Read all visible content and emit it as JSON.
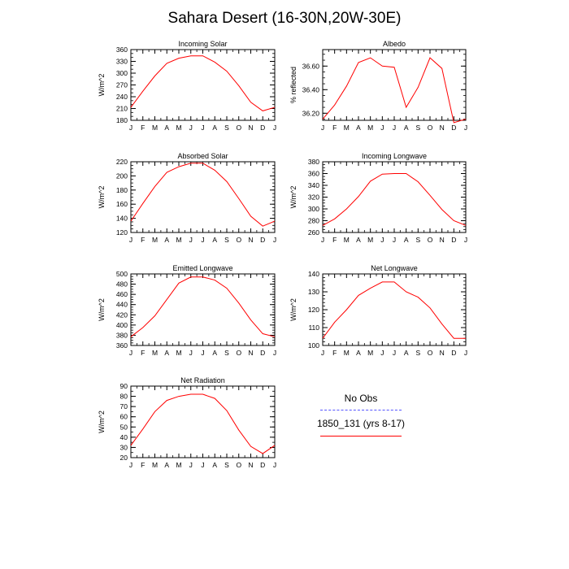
{
  "figure": {
    "title": "Sahara Desert (16-30N,20W-30E)"
  },
  "months": [
    "J",
    "F",
    "M",
    "A",
    "M",
    "J",
    "J",
    "A",
    "S",
    "O",
    "N",
    "D",
    "J"
  ],
  "legend": {
    "items": [
      {
        "label": "No Obs",
        "color": "#5555ff",
        "style": "dashed"
      },
      {
        "label": "1850_131 (yrs 8-17)",
        "color": "#ff0000",
        "style": "solid"
      }
    ]
  },
  "chart_data": [
    {
      "type": "line",
      "title": "Incoming Solar",
      "ylabel": "W/m^2",
      "ylim": [
        180,
        360
      ],
      "yticks": [
        180,
        210,
        240,
        270,
        300,
        330,
        360
      ],
      "ytick_labels": [
        "180",
        "210",
        "240",
        "270",
        "300",
        "330",
        "360"
      ],
      "ytick_minor_step": 10,
      "categories": [
        "J",
        "F",
        "M",
        "A",
        "M",
        "J",
        "J",
        "A",
        "S",
        "O",
        "N",
        "D",
        "J"
      ],
      "series": [
        {
          "color": "#ff0000",
          "values": [
            213,
            254,
            293,
            325,
            338,
            344,
            344,
            328,
            305,
            268,
            226,
            204,
            213
          ]
        }
      ]
    },
    {
      "type": "line",
      "title": "Albedo",
      "ylabel": "% reflected",
      "ylim": [
        36.14,
        36.74
      ],
      "yticks": [
        36.2,
        36.4,
        36.6
      ],
      "ytick_labels": [
        "36.20",
        "36.40",
        "36.60"
      ],
      "ytick_minor_step": 0.05,
      "categories": [
        "J",
        "F",
        "M",
        "A",
        "M",
        "J",
        "J",
        "A",
        "S",
        "O",
        "N",
        "D",
        "J"
      ],
      "series": [
        {
          "color": "#ff0000",
          "values": [
            36.15,
            36.27,
            36.43,
            36.63,
            36.67,
            36.6,
            36.59,
            36.25,
            36.42,
            36.67,
            36.58,
            36.12,
            36.15
          ]
        }
      ]
    },
    {
      "type": "line",
      "title": "Absorbed Solar",
      "ylabel": "W/m^2",
      "ylim": [
        120,
        220
      ],
      "yticks": [
        120,
        140,
        160,
        180,
        200,
        220
      ],
      "ytick_labels": [
        "120",
        "140",
        "160",
        "180",
        "200",
        "220"
      ],
      "ytick_minor_step": 5,
      "categories": [
        "J",
        "F",
        "M",
        "A",
        "M",
        "J",
        "J",
        "A",
        "S",
        "O",
        "N",
        "D",
        "J"
      ],
      "series": [
        {
          "color": "#ff0000",
          "values": [
            136,
            161,
            185,
            205,
            213,
            218,
            218,
            208,
            192,
            168,
            143,
            129,
            136
          ]
        }
      ]
    },
    {
      "type": "line",
      "title": "Incoming Longwave",
      "ylabel": "W/m^2",
      "ylim": [
        260,
        380
      ],
      "yticks": [
        260,
        280,
        300,
        320,
        340,
        360,
        380
      ],
      "ytick_labels": [
        "260",
        "280",
        "300",
        "320",
        "340",
        "360",
        "380"
      ],
      "ytick_minor_step": 5,
      "categories": [
        "J",
        "F",
        "M",
        "A",
        "M",
        "J",
        "J",
        "A",
        "S",
        "O",
        "N",
        "D",
        "J"
      ],
      "series": [
        {
          "color": "#ff0000",
          "values": [
            272,
            283,
            300,
            321,
            347,
            359,
            360,
            360,
            346,
            323,
            299,
            280,
            272
          ]
        }
      ]
    },
    {
      "type": "line",
      "title": "Emitted Longwave",
      "ylabel": "W/m^2",
      "ylim": [
        360,
        500
      ],
      "yticks": [
        360,
        380,
        400,
        420,
        440,
        460,
        480,
        500
      ],
      "ytick_labels": [
        "360",
        "380",
        "400",
        "420",
        "440",
        "460",
        "480",
        "500"
      ],
      "ytick_minor_step": 5,
      "categories": [
        "J",
        "F",
        "M",
        "A",
        "M",
        "J",
        "J",
        "A",
        "S",
        "O",
        "N",
        "D",
        "J"
      ],
      "series": [
        {
          "color": "#ff0000",
          "values": [
            377,
            395,
            418,
            450,
            482,
            494,
            494,
            488,
            472,
            443,
            410,
            383,
            377
          ]
        }
      ]
    },
    {
      "type": "line",
      "title": "Net Longwave",
      "ylabel": "W/m^2",
      "ylim": [
        100,
        140
      ],
      "yticks": [
        100,
        110,
        120,
        130,
        140
      ],
      "ytick_labels": [
        "100",
        "110",
        "120",
        "130",
        "140"
      ],
      "ytick_minor_step": 2,
      "categories": [
        "J",
        "F",
        "M",
        "A",
        "M",
        "J",
        "J",
        "A",
        "S",
        "O",
        "N",
        "D",
        "J"
      ],
      "series": [
        {
          "color": "#ff0000",
          "values": [
            104,
            113,
            120,
            128,
            132,
            135.5,
            135.5,
            130,
            127,
            121,
            112,
            104,
            104
          ]
        }
      ]
    },
    {
      "type": "line",
      "title": "Net Radiation",
      "ylabel": "W/m^2",
      "ylim": [
        20,
        90
      ],
      "yticks": [
        20,
        30,
        40,
        50,
        60,
        70,
        80,
        90
      ],
      "ytick_labels": [
        "20",
        "30",
        "40",
        "50",
        "60",
        "70",
        "80",
        "90"
      ],
      "ytick_minor_step": 5,
      "categories": [
        "J",
        "F",
        "M",
        "A",
        "M",
        "J",
        "J",
        "A",
        "S",
        "O",
        "N",
        "D",
        "J"
      ],
      "series": [
        {
          "color": "#ff0000",
          "values": [
            32,
            48,
            65,
            76,
            80,
            82,
            82,
            78,
            66,
            47,
            31,
            24,
            32
          ]
        }
      ]
    }
  ]
}
